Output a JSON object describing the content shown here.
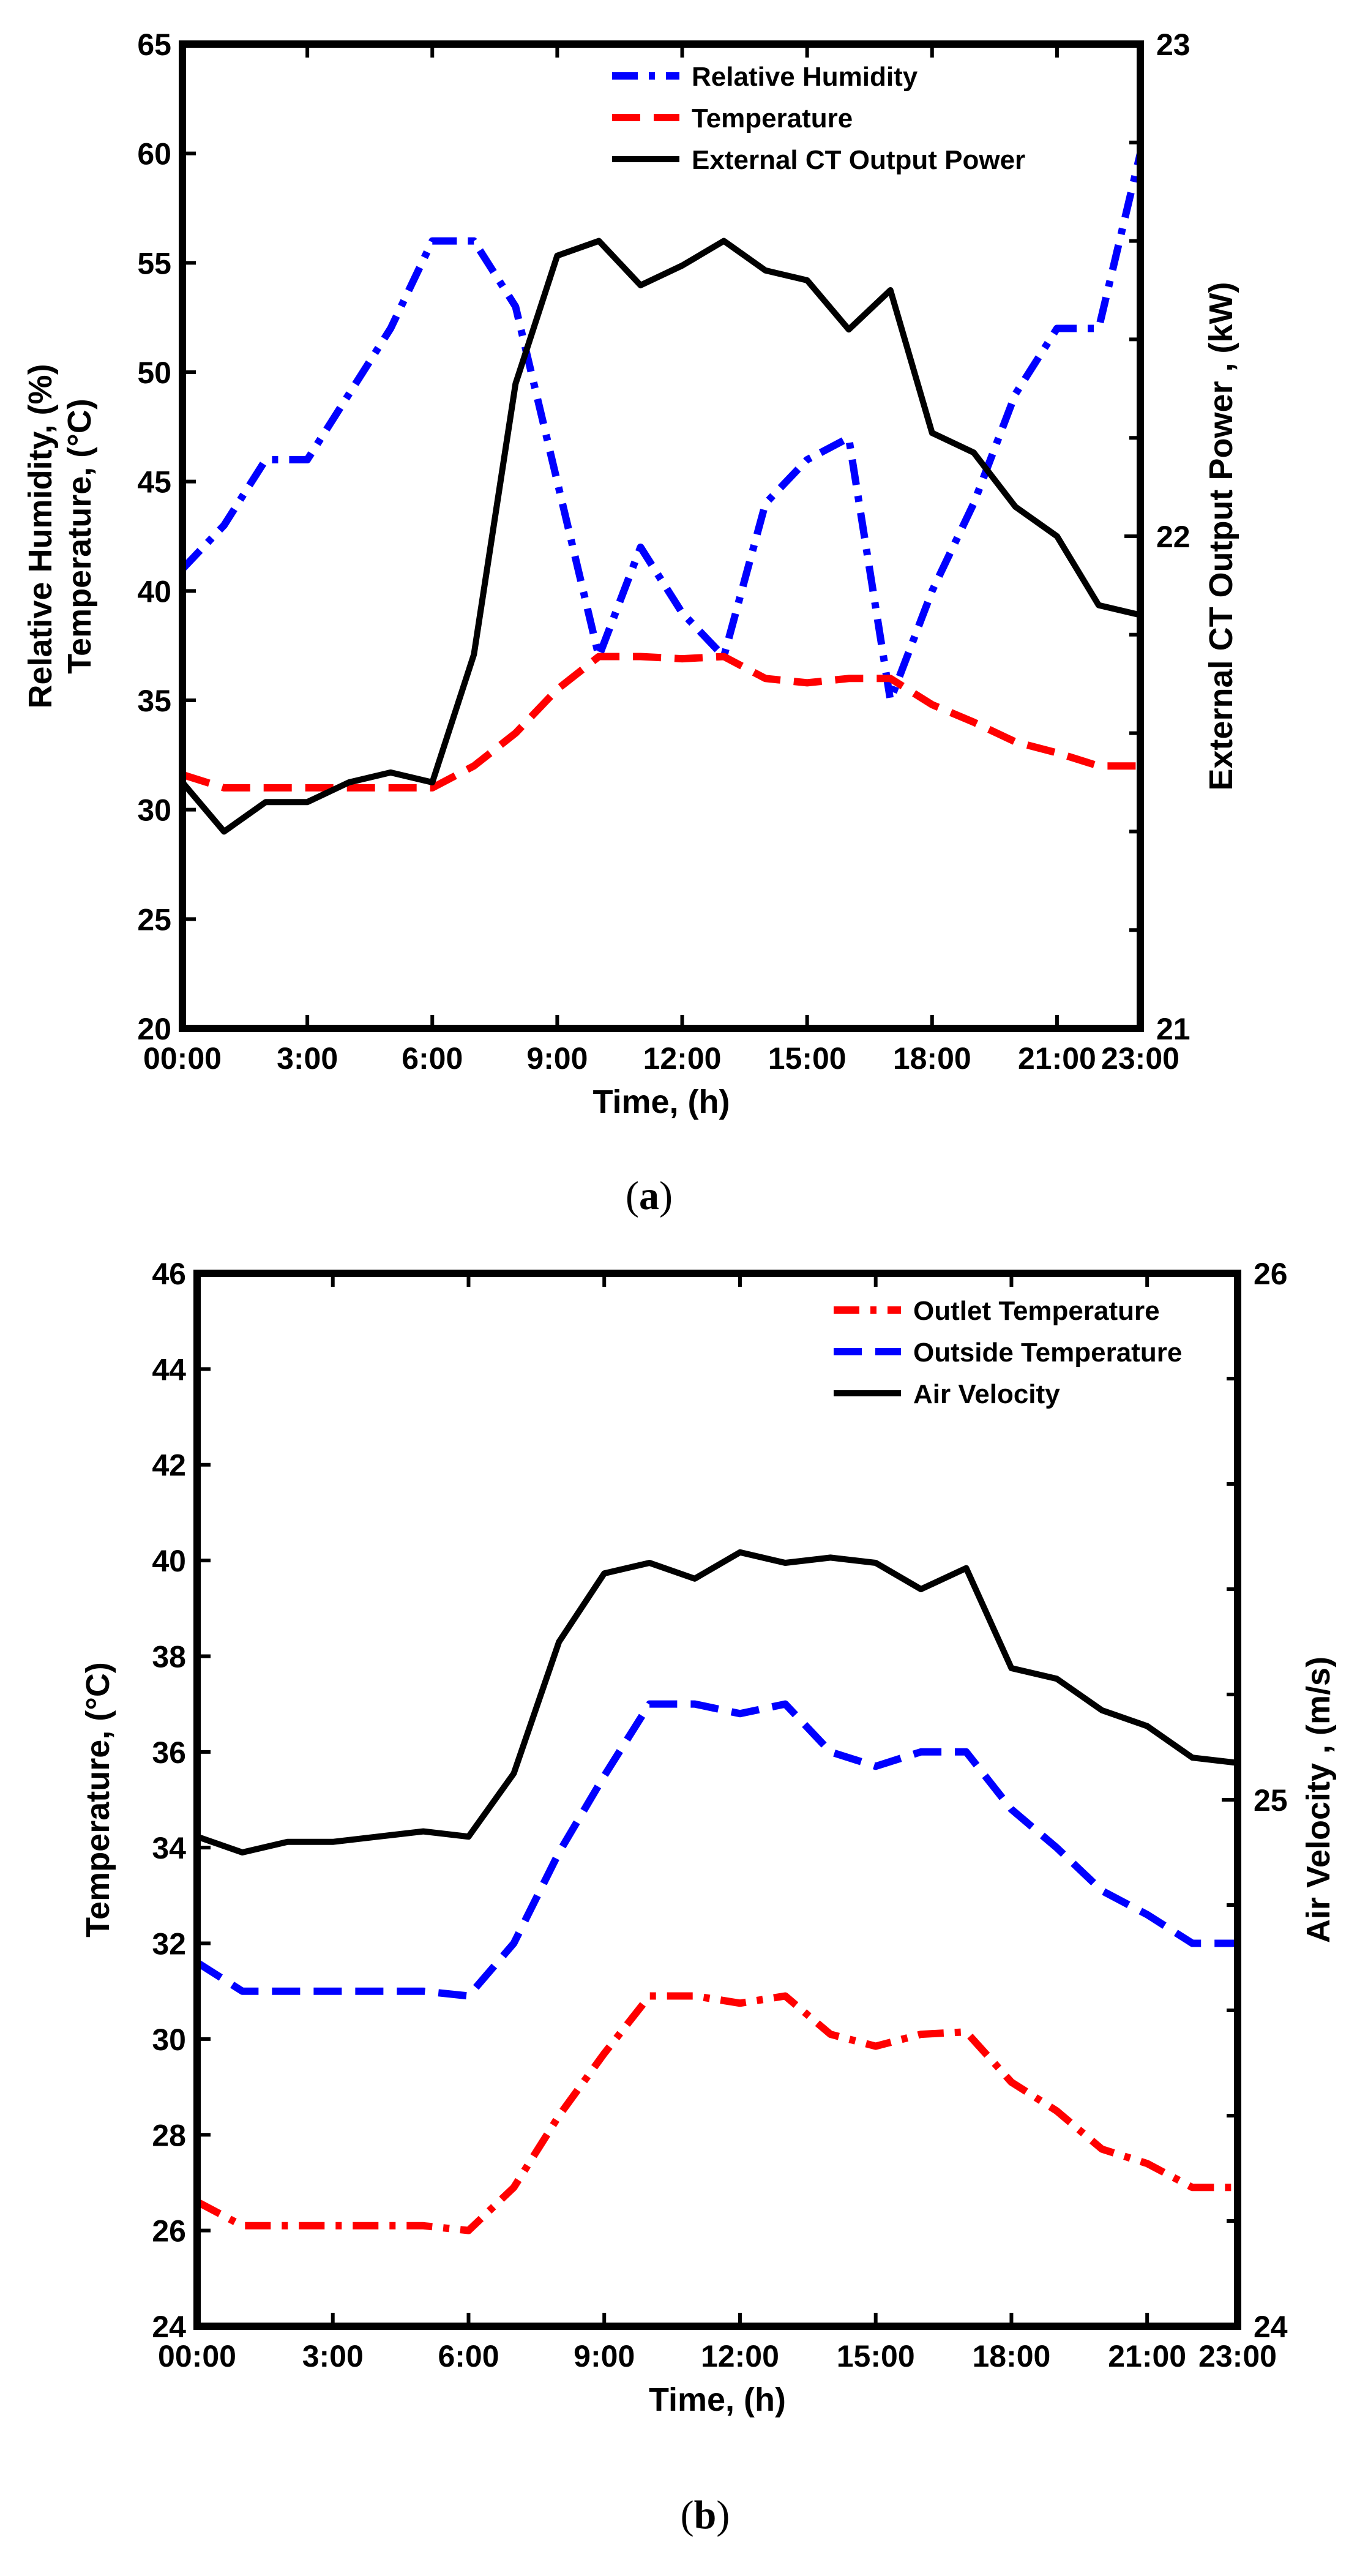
{
  "chart_data": [
    {
      "type": "line",
      "caption": "a",
      "xlabel": "Time, (h)",
      "ylabel_left": [
        "Relative Humidity, (%)",
        "Temperature, (°C)"
      ],
      "ylabel_right": "External CT Output Power , (kW)",
      "x_ticks": [
        "00:00",
        "3:00",
        "6:00",
        "9:00",
        "12:00",
        "15:00",
        "18:00",
        "21:00",
        "23:00"
      ],
      "xlim": [
        0,
        23
      ],
      "ylim_left": [
        20,
        65
      ],
      "yticks_left": [
        20,
        25,
        30,
        35,
        40,
        45,
        50,
        55,
        60,
        65
      ],
      "ylim_right": [
        21,
        23
      ],
      "yticks_right": [
        21,
        22,
        23
      ],
      "legend_position": "top-right",
      "x": [
        0,
        1,
        2,
        3,
        4,
        5,
        6,
        7,
        8,
        9,
        10,
        11,
        12,
        13,
        14,
        15,
        16,
        17,
        18,
        19,
        20,
        21,
        22,
        23
      ],
      "series": [
        {
          "name": "Relative Humidity",
          "axis": "left",
          "color": "#0000ff",
          "style": "dashdot",
          "values": [
            41,
            43,
            46,
            46,
            49,
            52,
            56,
            56,
            53,
            45,
            37,
            42,
            39,
            37,
            44,
            46,
            47,
            35,
            40,
            44,
            49,
            52,
            52,
            60
          ]
        },
        {
          "name": "Temperature",
          "axis": "left",
          "color": "#ff0000",
          "style": "dashed",
          "values": [
            31.6,
            31,
            31,
            31,
            31,
            31,
            31,
            32,
            33.5,
            35.5,
            37,
            37,
            36.9,
            37,
            36,
            35.8,
            36,
            36,
            34.8,
            34,
            33.1,
            32.6,
            32,
            32
          ]
        },
        {
          "name": "External CT Output Power",
          "axis": "right",
          "color": "#000000",
          "style": "solid",
          "values": [
            21.5,
            21.4,
            21.46,
            21.46,
            21.5,
            21.52,
            21.5,
            21.76,
            22.31,
            22.57,
            22.6,
            22.51,
            22.55,
            22.6,
            22.54,
            22.52,
            22.42,
            22.5,
            22.21,
            22.17,
            22.06,
            22.0,
            21.86,
            21.84
          ]
        }
      ]
    },
    {
      "type": "line",
      "caption": "b",
      "xlabel": "Time, (h)",
      "ylabel_left": [
        "Temperature, (°C)"
      ],
      "ylabel_right": "Air Velocity , (m/s)",
      "x_ticks": [
        "00:00",
        "3:00",
        "6:00",
        "9:00",
        "12:00",
        "15:00",
        "18:00",
        "21:00",
        "23:00"
      ],
      "xlim": [
        0,
        23
      ],
      "ylim_left": [
        24,
        46
      ],
      "yticks_left": [
        24,
        26,
        28,
        30,
        32,
        34,
        36,
        38,
        40,
        42,
        44,
        46
      ],
      "ylim_right": [
        24,
        26
      ],
      "yticks_right": [
        24,
        25,
        26
      ],
      "legend_position": "top-right",
      "x": [
        0,
        1,
        2,
        3,
        4,
        5,
        6,
        7,
        8,
        9,
        10,
        11,
        12,
        13,
        14,
        15,
        16,
        17,
        18,
        19,
        20,
        21,
        22,
        23
      ],
      "series": [
        {
          "name": "Outlet Temperature",
          "axis": "left",
          "color": "#ff0000",
          "style": "dashdot",
          "values": [
            26.6,
            26.1,
            26.1,
            26.1,
            26.1,
            26.1,
            26.0,
            26.9,
            28.4,
            29.7,
            30.9,
            30.9,
            30.75,
            30.9,
            30.1,
            29.85,
            30.1,
            30.15,
            29.1,
            28.5,
            27.7,
            27.4,
            26.9,
            26.9
          ]
        },
        {
          "name": "Outside Temperature",
          "axis": "left",
          "color": "#0000ff",
          "style": "dashed",
          "values": [
            31.6,
            31,
            31,
            31,
            31,
            31,
            30.9,
            32,
            33.9,
            35.5,
            37,
            37,
            36.8,
            37,
            36,
            35.7,
            36,
            36,
            34.8,
            34,
            33.1,
            32.6,
            32,
            32
          ]
        },
        {
          "name": "Air Velocity",
          "axis": "right",
          "color": "#000000",
          "style": "solid",
          "values": [
            24.93,
            24.9,
            24.92,
            24.92,
            24.93,
            24.94,
            24.93,
            25.05,
            25.3,
            25.43,
            25.45,
            25.42,
            25.47,
            25.45,
            25.46,
            25.45,
            25.4,
            25.44,
            25.25,
            25.23,
            25.17,
            25.14,
            25.08,
            25.07
          ]
        }
      ]
    }
  ]
}
